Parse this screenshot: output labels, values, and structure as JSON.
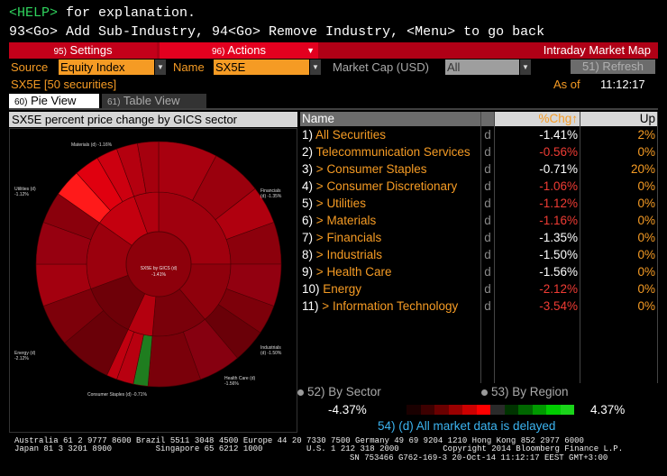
{
  "header": {
    "help_key": "<HELP>",
    "help_text": " for explanation.",
    "command_line": "93<Go> Add Sub-Industry, 94<Go> Remove Industry, <Menu> to go back"
  },
  "menubar": {
    "settings_num": "95)",
    "settings_label": " Settings",
    "actions_num": "96)",
    "actions_label": " Actions",
    "title": "Intraday Market Map"
  },
  "filters": {
    "source_label": "Source",
    "source_value": "Equity Index",
    "name_label": "Name",
    "name_value": "SX5E",
    "marketcap_label": "Market Cap (USD)",
    "marketcap_value": "All",
    "refresh_label": "51) Refresh"
  },
  "status": {
    "index_info": "SX5E [50 securities]",
    "asof_label": "As of",
    "asof_time": "11:12:17"
  },
  "tabs": [
    {
      "num": "60)",
      "label": "Pie View"
    },
    {
      "num": "61)",
      "label": "Table View"
    }
  ],
  "chart_title": "SX5E percent price change by GICS sector",
  "chart_data": {
    "type": "sunburst",
    "center_label": "SX5E by GICS (d)",
    "center_value": "-1.41%",
    "sectors": [
      {
        "name": "Financials",
        "flag": "(d)",
        "value": "-1.35%"
      },
      {
        "name": "Industrials",
        "flag": "(d)",
        "value": "-1.50%"
      },
      {
        "name": "Health Care",
        "flag": "(d)",
        "value": "-1.56%"
      },
      {
        "name": "Consumer Staples",
        "flag": "(d)",
        "value": "-0.71%"
      },
      {
        "name": "Energy",
        "flag": "(d)",
        "value": "-2.12%"
      },
      {
        "name": "Utilities",
        "flag": "(d)",
        "value": "-1.12%"
      },
      {
        "name": "Materials",
        "flag": "(d)",
        "value": "-1.16%"
      }
    ]
  },
  "table": {
    "headers": {
      "name": "Name",
      "chg": "%Chg↑",
      "up": "Up"
    },
    "rows": [
      {
        "num": "1)",
        "name": "All Securities",
        "d": "d",
        "chg": "-1.41%",
        "up": "2%",
        "arrow": ""
      },
      {
        "num": "2)",
        "name": "Telecommunication Services",
        "d": "d",
        "chg": "-0.56%",
        "up": "0%",
        "arrow": ""
      },
      {
        "num": "3)",
        "name": "Consumer Staples",
        "d": "d",
        "chg": "-0.71%",
        "up": "20%",
        "arrow": ">"
      },
      {
        "num": "4)",
        "name": "Consumer Discretionary",
        "d": "d",
        "chg": "-1.06%",
        "up": "0%",
        "arrow": ">"
      },
      {
        "num": "5)",
        "name": "Utilities",
        "d": "d",
        "chg": "-1.12%",
        "up": "0%",
        "arrow": ">"
      },
      {
        "num": "6)",
        "name": "Materials",
        "d": "d",
        "chg": "-1.16%",
        "up": "0%",
        "arrow": ">"
      },
      {
        "num": "7)",
        "name": "Financials",
        "d": "d",
        "chg": "-1.35%",
        "up": "0%",
        "arrow": ">"
      },
      {
        "num": "8)",
        "name": "Industrials",
        "d": "d",
        "chg": "-1.50%",
        "up": "0%",
        "arrow": ">"
      },
      {
        "num": "9)",
        "name": "Health Care",
        "d": "d",
        "chg": "-1.56%",
        "up": "0%",
        "arrow": ">"
      },
      {
        "num": "10)",
        "name": "Energy",
        "d": "d",
        "chg": "-2.12%",
        "up": "0%",
        "arrow": ""
      },
      {
        "num": "11)",
        "name": "Information Technology",
        "d": "d",
        "chg": "-3.54%",
        "up": "0%",
        "arrow": ">"
      }
    ]
  },
  "grouping": {
    "by_sector": "52)  By Sector",
    "by_region": "53)  By Region"
  },
  "legend": {
    "min": "-4.37%",
    "max": "4.37%"
  },
  "delay_notice": "54) (d) All market data is delayed",
  "footer": {
    "line1": "Australia 61 2 9777 8600 Brazil 5511 3048 4500 Europe 44 20 7330 7500 Germany 49 69 9204 1210 Hong Kong 852 2977 6000",
    "line2": "Japan 81 3 3201 8900         Singapore 65 6212 1000         U.S. 1 212 318 2000         Copyright 2014 Bloomberg Finance L.P.",
    "line3": "SN 753466 G762-169-3 20-Oct-14 11:12:17 EEST GMT+3:00"
  },
  "colors": {
    "accent_orange": "#f59b24",
    "menu_red": "#c4001a",
    "negative_red": "#f03c34",
    "positive_green": "#1ad41a"
  }
}
